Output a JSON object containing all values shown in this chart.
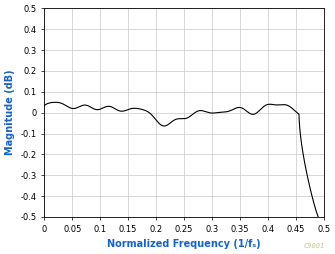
{
  "title": "",
  "xlabel": "Normalized Frequency (1/fₛ)",
  "ylabel": "Magnitude (dB)",
  "xlim": [
    0,
    0.5
  ],
  "ylim": [
    -0.5,
    0.5
  ],
  "xticks": [
    0,
    0.05,
    0.1,
    0.15,
    0.2,
    0.25,
    0.3,
    0.35,
    0.4,
    0.45,
    0.5
  ],
  "yticks": [
    -0.5,
    -0.4,
    -0.3,
    -0.2,
    -0.1,
    0.0,
    0.1,
    0.2,
    0.3,
    0.4,
    0.5
  ],
  "line_color": "#000000",
  "grid_color": "#c8c8c8",
  "background_color": "#ffffff",
  "watermark": "C9001",
  "watermark_color": "#c8c896",
  "axis_label_color": "#1464c8",
  "tick_label_color": "#000000",
  "xlabel_fontsize": 7,
  "ylabel_fontsize": 7,
  "tick_fontsize": 6
}
